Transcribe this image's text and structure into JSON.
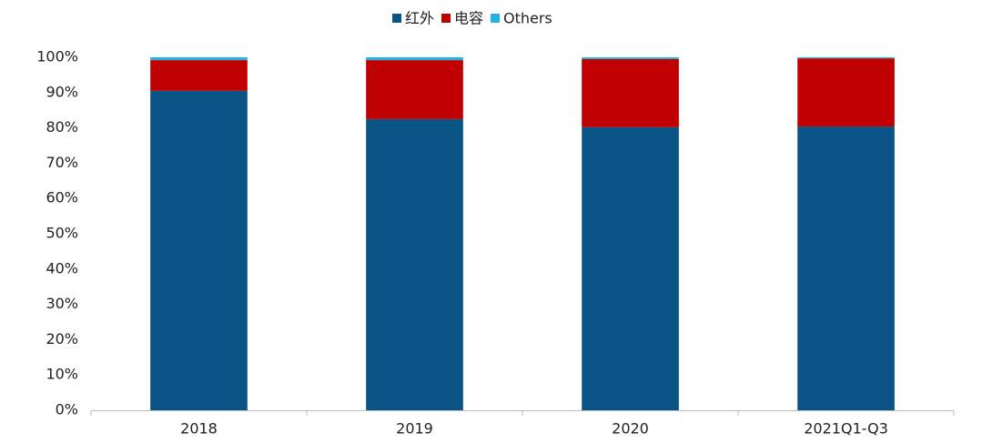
{
  "chart_data": {
    "type": "stacked_bar",
    "categories": [
      "2018",
      "2019",
      "2020",
      "2021Q1-Q3"
    ],
    "series": [
      {
        "name": "红外",
        "color": "#0b5486",
        "values": [
          90.5,
          82.5,
          80.2,
          80.4
        ]
      },
      {
        "name": "电容",
        "color": "#c00000",
        "values": [
          8.7,
          16.7,
          19.3,
          19.3
        ]
      },
      {
        "name": "Others",
        "color": "#1fb3e8",
        "values": [
          0.8,
          0.8,
          0.5,
          0.3
        ]
      }
    ],
    "ylim": [
      0,
      100
    ],
    "yticks": [
      {
        "value": 0,
        "label": "0%"
      },
      {
        "value": 10,
        "label": "10%"
      },
      {
        "value": 20,
        "label": "20%"
      },
      {
        "value": 30,
        "label": "30%"
      },
      {
        "value": 40,
        "label": "40%"
      },
      {
        "value": 50,
        "label": "50%"
      },
      {
        "value": 60,
        "label": "60%"
      },
      {
        "value": 70,
        "label": "70%"
      },
      {
        "value": 80,
        "label": "80%"
      },
      {
        "value": 90,
        "label": "90%"
      },
      {
        "value": 100,
        "label": "100%"
      }
    ],
    "grid": false,
    "legend": "top"
  }
}
